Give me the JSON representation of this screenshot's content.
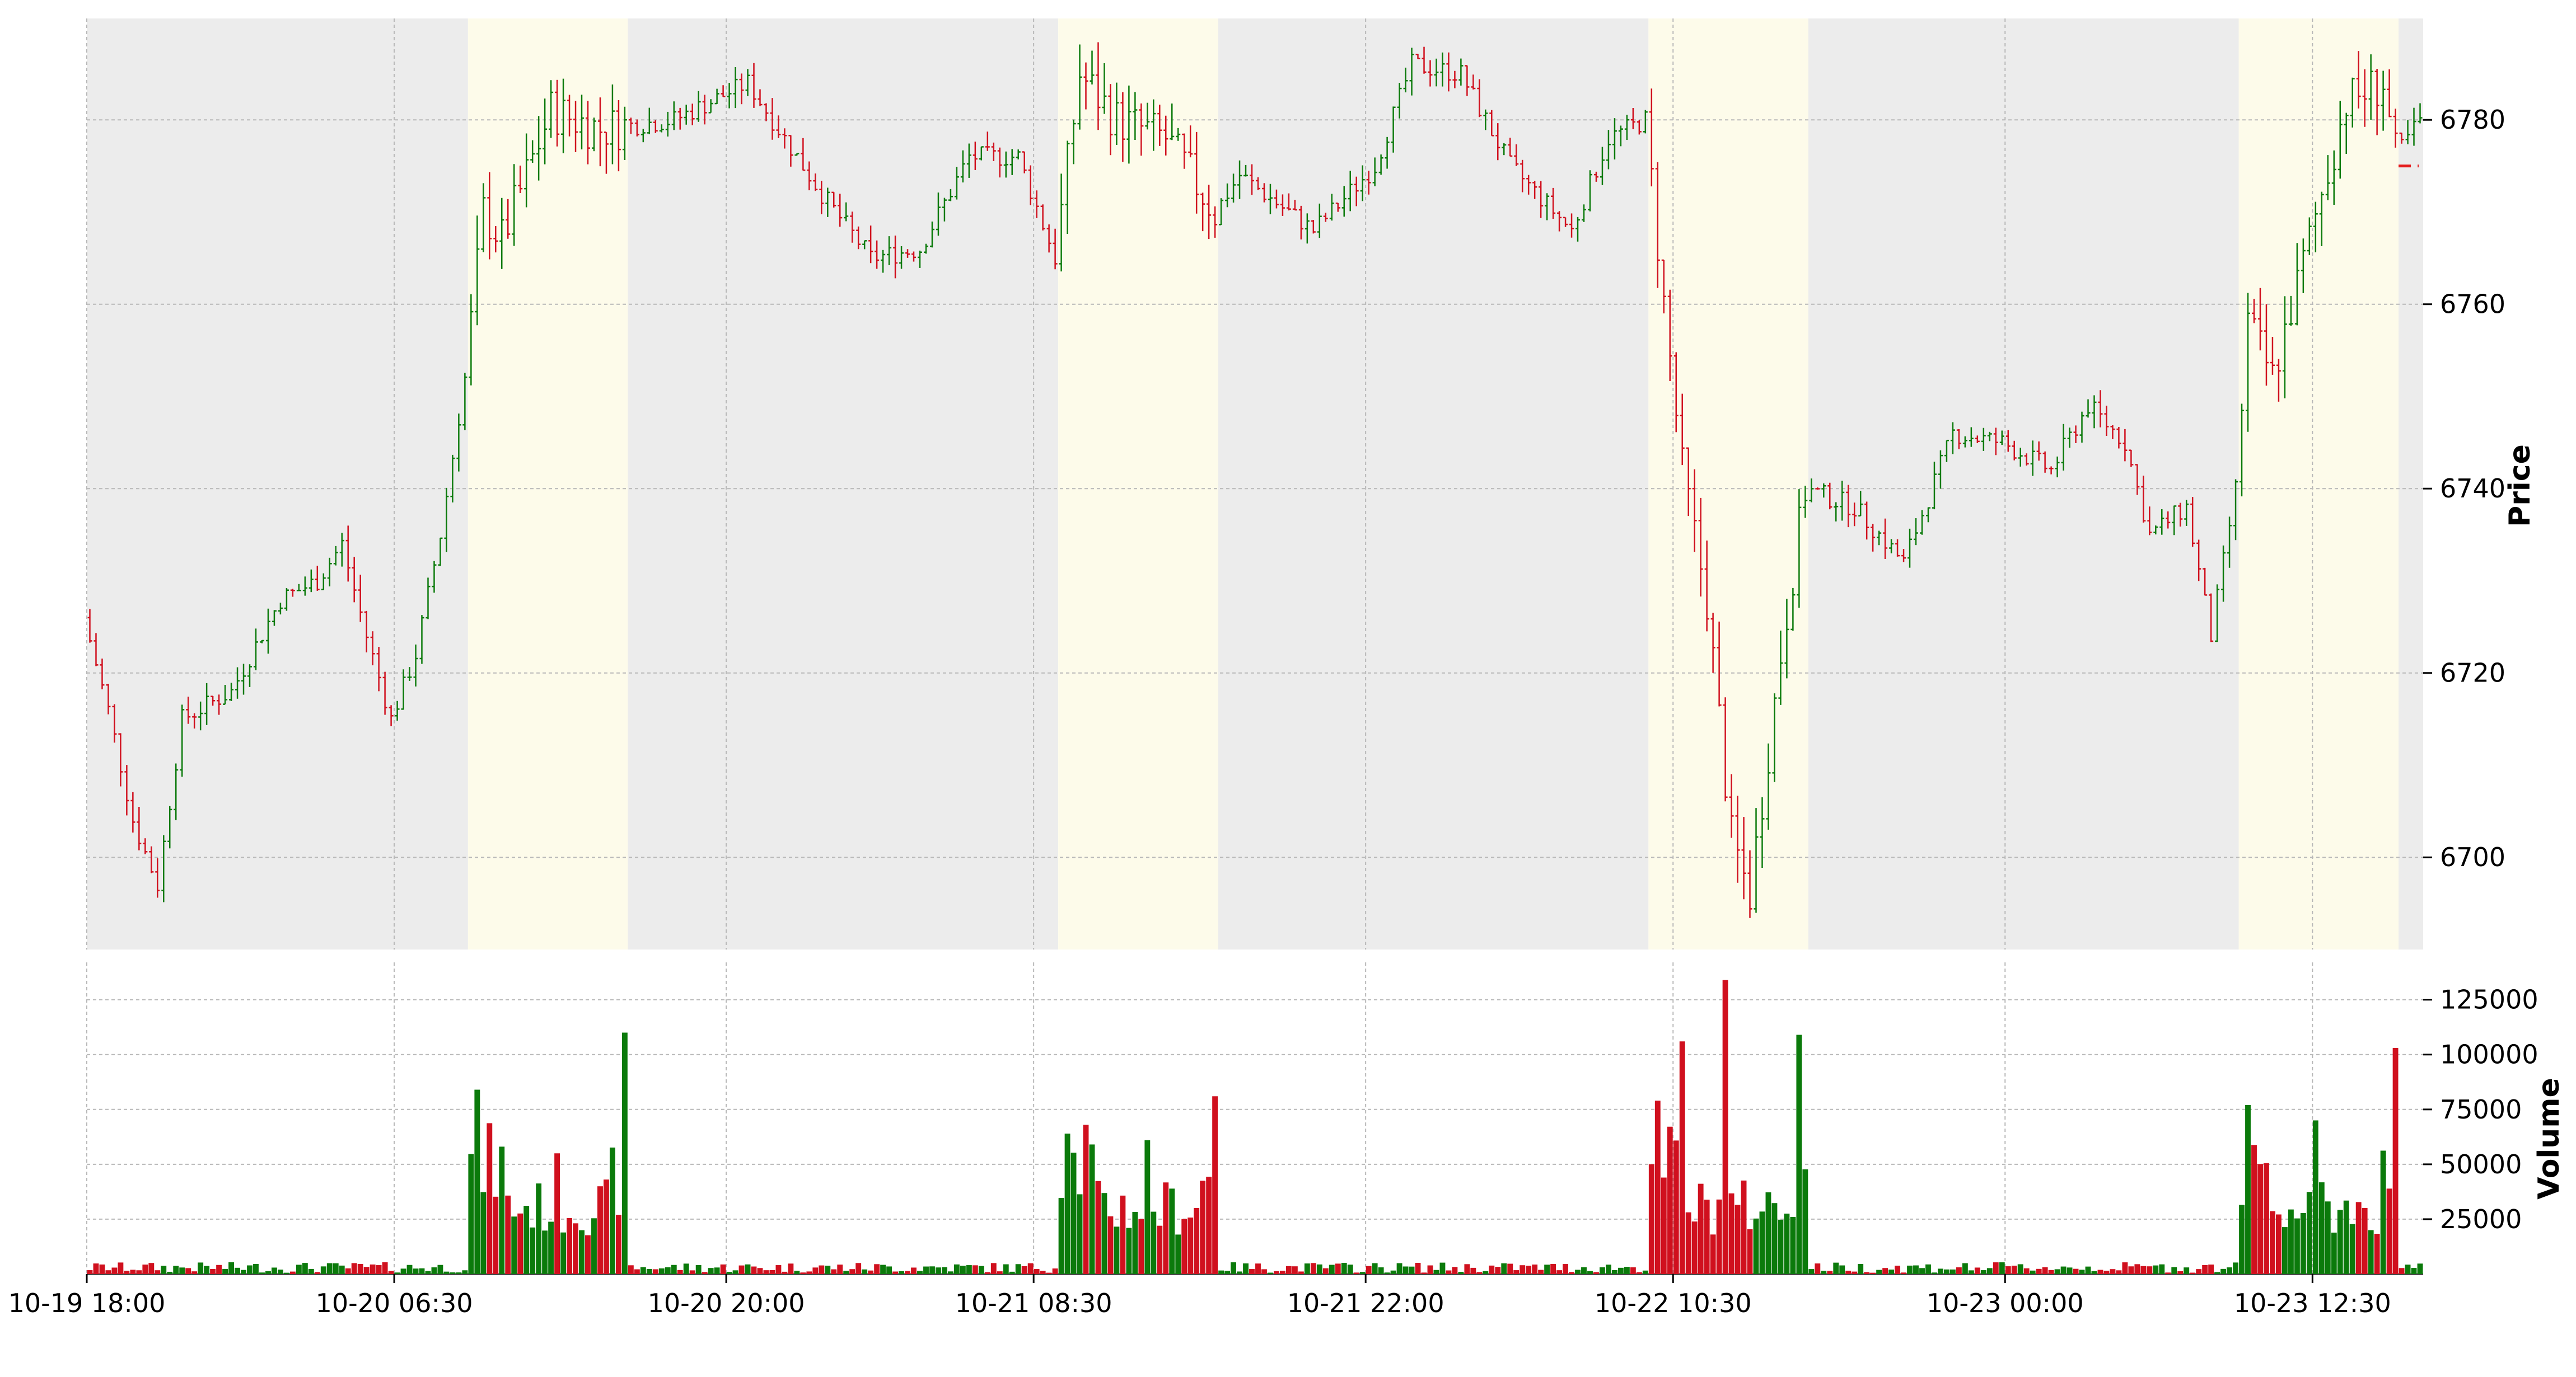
{
  "chart_data": [
    {
      "type": "ohlc",
      "title": "",
      "ylabel": "Price",
      "ylim": [
        6690,
        6791
      ],
      "yticks": [
        6700,
        6720,
        6740,
        6760,
        6780
      ],
      "grid": true,
      "x_range": [
        "10-19 18:00",
        "10-23 17:00"
      ],
      "xtick_labels": [
        "10-19 18:00",
        "10-20 06:30",
        "10-20 20:00",
        "10-21 08:30",
        "10-21 22:00",
        "10-22 10:30",
        "10-23 00:00",
        "10-23 12:30"
      ],
      "colors": {
        "up": "#0b7a0b",
        "down": "#d0101e",
        "rth_band": "#fdfbea",
        "eth_band": "#ececec",
        "grid": "#b8b8b8"
      },
      "sessions": [
        {
          "type": "eth",
          "start": "10-19 18:00",
          "end": "10-20 09:30"
        },
        {
          "type": "rth",
          "start": "10-20 09:30",
          "end": "10-20 16:00"
        },
        {
          "type": "eth",
          "start": "10-20 16:00",
          "end": "10-21 09:30"
        },
        {
          "type": "rth",
          "start": "10-21 09:30",
          "end": "10-21 16:00"
        },
        {
          "type": "eth",
          "start": "10-21 16:00",
          "end": "10-22 09:30"
        },
        {
          "type": "rth",
          "start": "10-22 09:30",
          "end": "10-22 16:00"
        },
        {
          "type": "eth",
          "start": "10-22 16:00",
          "end": "10-23 09:30"
        },
        {
          "type": "rth",
          "start": "10-23 09:30",
          "end": "10-23 16:00"
        },
        {
          "type": "eth",
          "start": "10-23 16:00",
          "end": "10-23 17:00"
        }
      ],
      "bar_interval_minutes": 15,
      "price_path": [
        [
          "10-19 18:00",
          6726
        ],
        [
          "10-19 19:00",
          6716
        ],
        [
          "10-19 20:00",
          6704
        ],
        [
          "10-19 21:00",
          6697
        ],
        [
          "10-19 22:00",
          6715
        ],
        [
          "10-20 00:00",
          6718
        ],
        [
          "10-20 02:00",
          6728
        ],
        [
          "10-20 03:30",
          6730
        ],
        [
          "10-20 04:30",
          6734
        ],
        [
          "10-20 05:30",
          6724
        ],
        [
          "10-20 06:30",
          6715
        ],
        [
          "10-20 07:30",
          6722
        ],
        [
          "10-20 08:30",
          6735
        ],
        [
          "10-20 09:30",
          6752
        ],
        [
          "10-20 10:15",
          6770
        ],
        [
          "10-20 11:00",
          6767
        ],
        [
          "10-20 13:00",
          6781
        ],
        [
          "10-20 15:00",
          6779
        ],
        [
          "10-20 18:00",
          6780
        ],
        [
          "10-20 21:00",
          6784
        ],
        [
          "10-21 00:00",
          6772
        ],
        [
          "10-21 02:00",
          6765
        ],
        [
          "10-21 04:00",
          6766
        ],
        [
          "10-21 06:00",
          6776
        ],
        [
          "10-21 08:00",
          6776
        ],
        [
          "10-21 09:30",
          6765
        ],
        [
          "10-21 10:30",
          6785
        ],
        [
          "10-21 12:00",
          6780
        ],
        [
          "10-21 14:00",
          6778
        ],
        [
          "10-21 16:00",
          6770
        ],
        [
          "10-21 17:00",
          6774
        ],
        [
          "10-21 20:00",
          6768
        ],
        [
          "10-21 22:30",
          6775
        ],
        [
          "10-22 00:00",
          6786
        ],
        [
          "10-22 02:00",
          6785
        ],
        [
          "10-22 04:00",
          6775
        ],
        [
          "10-22 06:30",
          6768
        ],
        [
          "10-22 08:00",
          6778
        ],
        [
          "10-22 09:30",
          6780
        ],
        [
          "10-22 10:15",
          6760
        ],
        [
          "10-22 11:00",
          6742
        ],
        [
          "10-22 12:00",
          6728
        ],
        [
          "10-22 13:00",
          6702
        ],
        [
          "10-22 13:45",
          6696
        ],
        [
          "10-22 15:00",
          6722
        ],
        [
          "10-22 16:00",
          6740
        ],
        [
          "10-22 18:00",
          6738
        ],
        [
          "10-22 20:00",
          6732
        ],
        [
          "10-22 22:00",
          6746
        ],
        [
          "10-23 00:00",
          6745
        ],
        [
          "10-23 02:00",
          6742
        ],
        [
          "10-23 03:30",
          6749
        ],
        [
          "10-23 05:00",
          6745
        ],
        [
          "10-23 06:00",
          6735
        ],
        [
          "10-23 07:30",
          6738
        ],
        [
          "10-23 08:30",
          6724
        ],
        [
          "10-23 09:30",
          6740
        ],
        [
          "10-23 10:00",
          6758
        ],
        [
          "10-23 11:00",
          6752
        ],
        [
          "10-23 12:00",
          6762
        ],
        [
          "10-23 13:00",
          6772
        ],
        [
          "10-23 14:00",
          6782
        ],
        [
          "10-23 15:30",
          6784
        ],
        [
          "10-23 16:00",
          6776
        ],
        [
          "10-23 17:00",
          6780
        ]
      ],
      "last_price_level": 6775
    },
    {
      "type": "bar",
      "ylabel": "Volume",
      "ylim": [
        0,
        142000
      ],
      "yticks": [
        25000,
        50000,
        75000,
        100000,
        125000
      ],
      "ytick_labels": [
        "25000",
        "50000",
        "75000",
        "100000",
        "125000"
      ],
      "grid": true,
      "volume_peaks": [
        [
          "10-20 09:45",
          84000
        ],
        [
          "10-20 13:00",
          55000
        ],
        [
          "10-20 15:45",
          110000
        ],
        [
          "10-21 09:45",
          64000
        ],
        [
          "10-21 10:30",
          68000
        ],
        [
          "10-21 13:00",
          61000
        ],
        [
          "10-21 15:45",
          81000
        ],
        [
          "10-22 09:45",
          79000
        ],
        [
          "10-22 10:45",
          106000
        ],
        [
          "10-22 12:30",
          134000
        ],
        [
          "10-22 15:30",
          109000
        ],
        [
          "10-23 09:45",
          77000
        ],
        [
          "10-23 12:30",
          70000
        ],
        [
          "10-23 15:45",
          103000
        ]
      ],
      "session_volume_levels": {
        "eth": 3000,
        "rth_open": 52000,
        "rth_mid": 32000,
        "rth_close": 45000
      }
    }
  ]
}
